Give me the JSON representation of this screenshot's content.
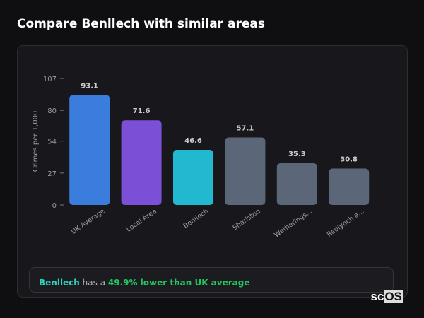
{
  "title": "Compare Benllech with similar areas",
  "chart_data": {
    "type": "bar",
    "ylabel": "Crimes per 1,000",
    "ylim": [
      0,
      107
    ],
    "yticks": [
      0,
      27,
      54,
      80,
      107
    ],
    "categories": [
      "UK Average",
      "Local Area",
      "Benllech",
      "Sharlston",
      "Wetherings...",
      "Redlynch a..."
    ],
    "values": [
      93.1,
      71.6,
      46.6,
      57.1,
      35.3,
      30.8
    ],
    "colors": [
      "#3b7ddd",
      "#7b4fd6",
      "#22b8cf",
      "#5b6778",
      "#5b6778",
      "#5b6778"
    ],
    "grid": false
  },
  "note": {
    "area": "Benllech",
    "middle": " has a ",
    "highlight": "49.9% lower than UK average"
  },
  "logo": {
    "a": "sc",
    "b": "OS"
  }
}
